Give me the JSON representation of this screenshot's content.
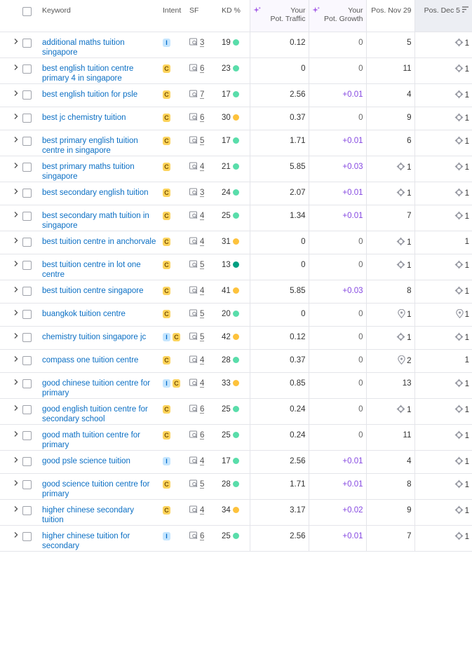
{
  "header": {
    "keyword": "Keyword",
    "intent": "Intent",
    "sf": "SF",
    "kd": "KD %",
    "traffic": [
      "Your",
      "Pot. Traffic"
    ],
    "growth": [
      "Your",
      "Pot. Growth"
    ],
    "pos_nov": "Pos. Nov 29",
    "pos_dec": "Pos. Dec 5"
  },
  "rows": [
    {
      "keyword": "additional maths tuition singapore",
      "intent": [
        "I"
      ],
      "sf": "3",
      "kd": "19",
      "kd_color": "#59ddaa",
      "traffic": "0.12",
      "growth": "0",
      "pos_nov": "5",
      "pos_dec": "1",
      "pos_dec_icon": "snippet"
    },
    {
      "keyword": "best english tuition centre primary 4 in singapore",
      "intent": [
        "C"
      ],
      "sf": "6",
      "kd": "23",
      "kd_color": "#59ddaa",
      "traffic": "0",
      "growth": "0",
      "pos_nov": "11",
      "pos_dec": "1",
      "pos_dec_icon": "snippet"
    },
    {
      "keyword": "best english tuition for psle",
      "intent": [
        "C"
      ],
      "sf": "7",
      "kd": "17",
      "kd_color": "#59ddaa",
      "traffic": "2.56",
      "growth": "+0.01",
      "pos_nov": "4",
      "pos_dec": "1",
      "pos_dec_icon": "snippet"
    },
    {
      "keyword": "best jc chemistry tuition",
      "intent": [
        "C"
      ],
      "sf": "6",
      "kd": "30",
      "kd_color": "#fdc23c",
      "traffic": "0.37",
      "growth": "0",
      "pos_nov": "9",
      "pos_dec": "1",
      "pos_dec_icon": "snippet"
    },
    {
      "keyword": "best primary english tuition centre in singapore",
      "intent": [
        "C"
      ],
      "sf": "5",
      "kd": "17",
      "kd_color": "#59ddaa",
      "traffic": "1.71",
      "growth": "+0.01",
      "pos_nov": "6",
      "pos_dec": "1",
      "pos_dec_icon": "snippet"
    },
    {
      "keyword": "best primary maths tuition singapore",
      "intent": [
        "C"
      ],
      "sf": "4",
      "kd": "21",
      "kd_color": "#59ddaa",
      "traffic": "5.85",
      "growth": "+0.03",
      "pos_nov": "1",
      "pos_nov_icon": "snippet",
      "pos_dec": "1",
      "pos_dec_icon": "snippet"
    },
    {
      "keyword": "best secondary english tuition",
      "intent": [
        "C"
      ],
      "sf": "3",
      "kd": "24",
      "kd_color": "#59ddaa",
      "traffic": "2.07",
      "growth": "+0.01",
      "pos_nov": "1",
      "pos_nov_icon": "snippet",
      "pos_dec": "1",
      "pos_dec_icon": "snippet"
    },
    {
      "keyword": "best secondary math tuition in singapore",
      "intent": [
        "C"
      ],
      "sf": "4",
      "kd": "25",
      "kd_color": "#59ddaa",
      "traffic": "1.34",
      "growth": "+0.01",
      "pos_nov": "7",
      "pos_dec": "1",
      "pos_dec_icon": "snippet"
    },
    {
      "keyword": "best tuition centre in anchorvale",
      "intent": [
        "C"
      ],
      "sf": "4",
      "kd": "31",
      "kd_color": "#fdc23c",
      "traffic": "0",
      "growth": "0",
      "pos_nov": "1",
      "pos_nov_icon": "snippet",
      "pos_dec": "1"
    },
    {
      "keyword": "best tuition centre in lot one centre",
      "intent": [
        "C"
      ],
      "sf": "5",
      "kd": "13",
      "kd_color": "#009f81",
      "traffic": "0",
      "growth": "0",
      "pos_nov": "1",
      "pos_nov_icon": "snippet",
      "pos_dec": "1",
      "pos_dec_icon": "snippet"
    },
    {
      "keyword": "best tuition centre singapore",
      "intent": [
        "C"
      ],
      "sf": "4",
      "kd": "41",
      "kd_color": "#fdc23c",
      "traffic": "5.85",
      "growth": "+0.03",
      "pos_nov": "8",
      "pos_dec": "1",
      "pos_dec_icon": "snippet"
    },
    {
      "keyword": "buangkok tuition centre",
      "intent": [
        "C"
      ],
      "sf": "5",
      "kd": "20",
      "kd_color": "#59ddaa",
      "traffic": "0",
      "growth": "0",
      "pos_nov": "1",
      "pos_nov_icon": "pin",
      "pos_dec": "1",
      "pos_dec_icon": "pin"
    },
    {
      "keyword": "chemistry tuition singapore jc",
      "intent": [
        "I",
        "C"
      ],
      "sf": "5",
      "kd": "42",
      "kd_color": "#fdc23c",
      "traffic": "0.12",
      "growth": "0",
      "pos_nov": "1",
      "pos_nov_icon": "snippet",
      "pos_dec": "1",
      "pos_dec_icon": "snippet"
    },
    {
      "keyword": "compass one tuition centre",
      "intent": [
        "C"
      ],
      "sf": "4",
      "kd": "28",
      "kd_color": "#59ddaa",
      "traffic": "0.37",
      "growth": "0",
      "pos_nov": "2",
      "pos_nov_icon": "pin",
      "pos_dec": "1"
    },
    {
      "keyword": "good chinese tuition centre for primary",
      "intent": [
        "I",
        "C"
      ],
      "sf": "4",
      "kd": "33",
      "kd_color": "#fdc23c",
      "traffic": "0.85",
      "growth": "0",
      "pos_nov": "13",
      "pos_dec": "1",
      "pos_dec_icon": "snippet"
    },
    {
      "keyword": "good english tuition centre for secondary school",
      "intent": [
        "C"
      ],
      "sf": "6",
      "kd": "25",
      "kd_color": "#59ddaa",
      "traffic": "0.24",
      "growth": "0",
      "pos_nov": "1",
      "pos_nov_icon": "snippet",
      "pos_dec": "1",
      "pos_dec_icon": "snippet"
    },
    {
      "keyword": "good math tuition centre for primary",
      "intent": [
        "C"
      ],
      "sf": "6",
      "kd": "25",
      "kd_color": "#59ddaa",
      "traffic": "0.24",
      "growth": "0",
      "pos_nov": "11",
      "pos_dec": "1",
      "pos_dec_icon": "snippet"
    },
    {
      "keyword": "good psle science tuition",
      "intent": [
        "I"
      ],
      "sf": "4",
      "kd": "17",
      "kd_color": "#59ddaa",
      "traffic": "2.56",
      "growth": "+0.01",
      "pos_nov": "4",
      "pos_dec": "1",
      "pos_dec_icon": "snippet"
    },
    {
      "keyword": "good science tuition centre for primary",
      "intent": [
        "C"
      ],
      "sf": "5",
      "kd": "28",
      "kd_color": "#59ddaa",
      "traffic": "1.71",
      "growth": "+0.01",
      "pos_nov": "8",
      "pos_dec": "1",
      "pos_dec_icon": "snippet"
    },
    {
      "keyword": "higher chinese secondary tuition",
      "intent": [
        "C"
      ],
      "sf": "4",
      "kd": "34",
      "kd_color": "#fdc23c",
      "traffic": "3.17",
      "growth": "+0.02",
      "pos_nov": "9",
      "pos_dec": "1",
      "pos_dec_icon": "snippet"
    },
    {
      "keyword": "higher chinese tuition for secondary",
      "intent": [
        "I"
      ],
      "sf": "6",
      "kd": "25",
      "kd_color": "#59ddaa",
      "traffic": "2.56",
      "growth": "+0.01",
      "pos_nov": "7",
      "pos_dec": "1",
      "pos_dec_icon": "snippet"
    }
  ]
}
